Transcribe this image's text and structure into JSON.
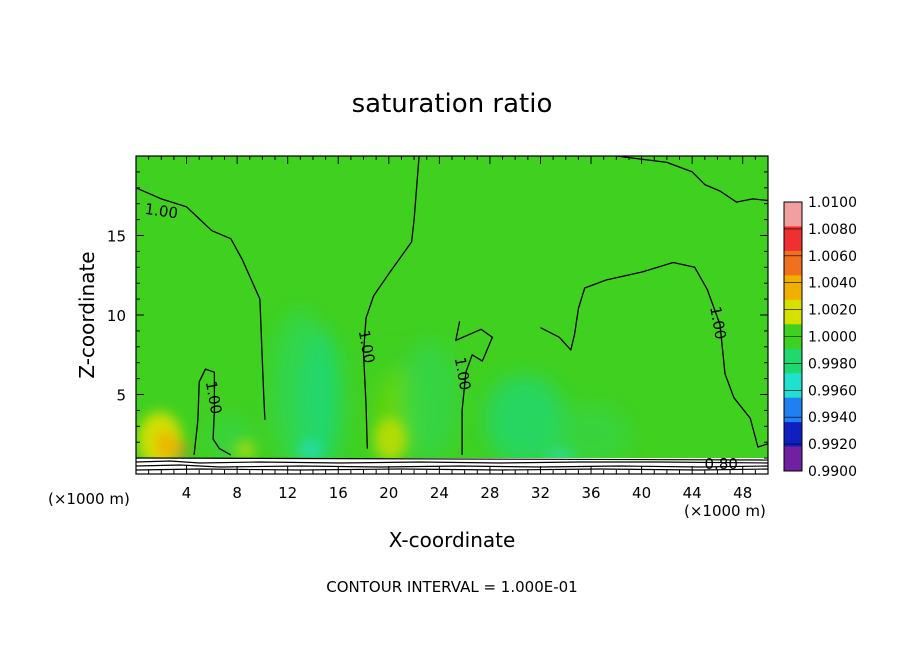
{
  "chart_data": {
    "type": "heatmap",
    "title": "saturation ratio",
    "xlabel": "X-coordinate",
    "ylabel": "Z-coordinate",
    "x_unit_label": "(×1000 m)",
    "y_unit_label": "(×1000 m)",
    "xlim": [
      0,
      50
    ],
    "ylim": [
      0,
      20
    ],
    "x_ticks": [
      4,
      8,
      12,
      16,
      20,
      24,
      28,
      32,
      36,
      40,
      44,
      48
    ],
    "y_ticks": [
      5,
      10,
      15
    ],
    "footer": "CONTOUR INTERVAL = 1.000E-01",
    "colorbar": {
      "levels": [
        "1.0100",
        "1.0080",
        "1.0060",
        "1.0040",
        "1.0020",
        "1.0000",
        "0.9980",
        "0.9960",
        "0.9940",
        "0.9920",
        "0.9900"
      ],
      "colors": [
        "#f0a0a0",
        "#f03030",
        "#f07020",
        "#f0b000",
        "#d8e000",
        "#40d020",
        "#20d870",
        "#20e0d0",
        "#2080f0",
        "#1020c0",
        "#7020a0"
      ]
    },
    "contour_labels": [
      {
        "text": "1.00",
        "x": 2.0,
        "z": 16.5
      },
      {
        "text": "1.00",
        "x": 6.1,
        "z": 4.8
      },
      {
        "text": "1.00",
        "x": 18.2,
        "z": 8.0
      },
      {
        "text": "1.00",
        "x": 25.8,
        "z": 6.3
      },
      {
        "text": "1.00",
        "x": 46.0,
        "z": 9.5
      },
      {
        "text": "0.80",
        "x": 46.3,
        "z": 0.6
      }
    ],
    "contours_one": [
      [
        [
          0.0,
          18.0
        ],
        [
          2.0,
          17.3
        ],
        [
          4.0,
          16.8
        ],
        [
          6.0,
          15.3
        ],
        [
          7.5,
          14.8
        ],
        [
          8.4,
          13.5
        ],
        [
          9.8,
          11.0
        ],
        [
          10.0,
          7.0
        ],
        [
          10.1,
          5.0
        ],
        [
          10.2,
          3.4
        ]
      ],
      [
        [
          4.6,
          1.2
        ],
        [
          4.9,
          3.4
        ],
        [
          5.0,
          5.8
        ],
        [
          5.5,
          6.6
        ],
        [
          6.2,
          6.4
        ],
        [
          6.2,
          4.0
        ],
        [
          6.1,
          2.2
        ],
        [
          6.6,
          1.6
        ],
        [
          7.5,
          1.2
        ]
      ],
      [
        [
          22.4,
          20.0
        ],
        [
          22.2,
          18.0
        ],
        [
          22.0,
          16.0
        ],
        [
          21.8,
          14.6
        ],
        [
          20.0,
          12.6
        ],
        [
          18.8,
          11.2
        ],
        [
          18.2,
          9.8
        ],
        [
          18.0,
          7.6
        ],
        [
          18.2,
          4.4
        ],
        [
          18.3,
          1.6
        ]
      ],
      [
        [
          25.8,
          1.2
        ],
        [
          25.8,
          4.0
        ],
        [
          26.1,
          6.4
        ],
        [
          26.6,
          7.5
        ],
        [
          27.4,
          7.1
        ],
        [
          28.2,
          8.6
        ],
        [
          27.3,
          9.1
        ],
        [
          25.3,
          8.4
        ],
        [
          25.6,
          9.6
        ]
      ],
      [
        [
          32.0,
          9.2
        ],
        [
          33.5,
          8.6
        ],
        [
          34.4,
          7.8
        ],
        [
          34.7,
          8.8
        ],
        [
          35.0,
          10.4
        ],
        [
          35.5,
          11.7
        ],
        [
          37.2,
          12.2
        ],
        [
          40.0,
          12.7
        ],
        [
          42.5,
          13.3
        ],
        [
          44.2,
          13.0
        ],
        [
          45.2,
          11.6
        ],
        [
          46.2,
          9.4
        ],
        [
          46.6,
          6.3
        ],
        [
          47.3,
          4.8
        ],
        [
          48.6,
          3.5
        ],
        [
          49.2,
          1.7
        ],
        [
          50.0,
          1.9
        ]
      ],
      [
        [
          38.0,
          20.0
        ],
        [
          42.0,
          19.6
        ],
        [
          44.0,
          19.0
        ],
        [
          45.0,
          18.2
        ],
        [
          46.2,
          17.8
        ],
        [
          47.5,
          17.1
        ],
        [
          48.8,
          17.3
        ],
        [
          50.0,
          17.2
        ]
      ]
    ]
  }
}
